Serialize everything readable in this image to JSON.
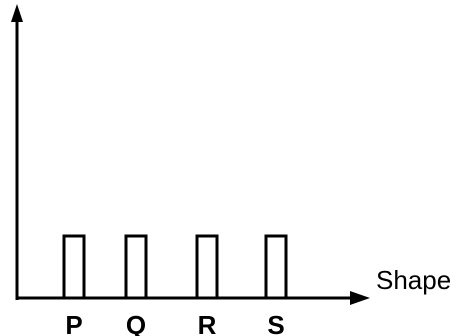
{
  "chart_data": {
    "type": "bar",
    "categories": [
      "P",
      "Q",
      "R",
      "S"
    ],
    "values": [
      1,
      1,
      1,
      1
    ],
    "xlabel": "Shape",
    "ylabel": "",
    "grid": false,
    "colors": {
      "bar_stroke": "#000000",
      "bar_fill": "#ffffff",
      "axis": "#000000"
    }
  }
}
